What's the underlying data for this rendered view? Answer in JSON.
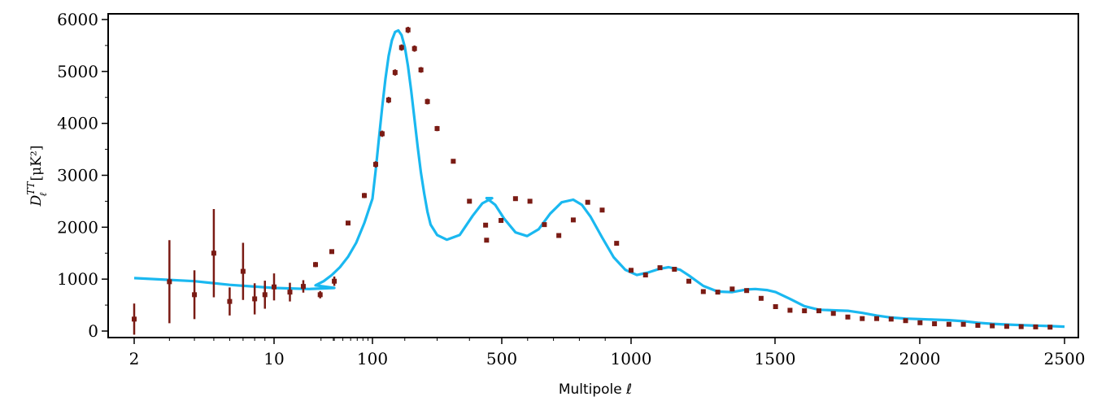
{
  "chart_data": {
    "type": "scatter",
    "xlabel": "Multipole ℓ",
    "ylabel": "D",
    "ylabel_sub": "ℓ",
    "ylabel_sup": "TT",
    "ylabel_unit": "[μK²]",
    "x_scale": "log for ℓ < 30, linear for ℓ ≥ 30",
    "x_ticks": [
      "2",
      "10",
      "100",
      "500",
      "1000",
      "1500",
      "2000",
      "2500"
    ],
    "y_ticks": [
      "0",
      "1000",
      "2000",
      "3000",
      "4000",
      "5000",
      "6000"
    ],
    "ylim": [
      -150,
      6100
    ],
    "grid": false,
    "colors": {
      "model": "#1ab8f0",
      "data": "#7a1b14"
    },
    "series": [
      {
        "kind": "model-curve",
        "x": [
          2,
          4,
          6,
          10,
          15,
          20,
          30,
          40,
          50,
          60,
          70,
          80,
          90,
          100,
          110,
          120,
          130,
          140,
          150,
          160,
          170,
          180,
          190,
          200,
          210,
          220,
          230,
          240,
          250,
          260,
          270,
          280,
          300,
          330,
          370,
          410,
          440,
          470,
          500,
          530,
          560,
          600,
          640,
          680,
          720,
          760,
          800,
          830,
          860,
          900,
          940,
          980,
          1020,
          1060,
          1100,
          1130,
          1170,
          1200,
          1250,
          1300,
          1350,
          1400,
          1430,
          1470,
          1500,
          1550,
          1600,
          1650,
          1700,
          1750,
          1800,
          1850,
          1900,
          1950,
          2000,
          2050,
          2100,
          2150,
          2200,
          2250,
          2300,
          2350,
          2400,
          2450,
          2500
        ],
        "y": [
          1020,
          960,
          890,
          830,
          810,
          830,
          880,
          960,
          1080,
          1230,
          1430,
          1700,
          2080,
          2550,
          3100,
          3700,
          4300,
          4850,
          5300,
          5600,
          5760,
          5790,
          5700,
          5470,
          5100,
          4620,
          4080,
          3550,
          3050,
          2650,
          2300,
          2050,
          1850,
          1760,
          1850,
          2220,
          2460,
          2560,
          2560,
          2430,
          2170,
          1900,
          1830,
          1960,
          2260,
          2480,
          2530,
          2430,
          2200,
          1800,
          1420,
          1180,
          1080,
          1130,
          1200,
          1230,
          1180,
          1070,
          870,
          760,
          750,
          800,
          810,
          790,
          750,
          620,
          480,
          410,
          400,
          390,
          350,
          300,
          260,
          240,
          230,
          220,
          210,
          190,
          160,
          140,
          125,
          115,
          105,
          95,
          85
        ]
      },
      {
        "kind": "data-points",
        "x": [
          2,
          3,
          4,
          5,
          6,
          7,
          8,
          9,
          10,
          12,
          14,
          17,
          20,
          30,
          50,
          70,
          90,
          110,
          130,
          150,
          170,
          190,
          210,
          230,
          250,
          270,
          300,
          350,
          400,
          450,
          500,
          550,
          600,
          650,
          700,
          750,
          800,
          850,
          900,
          950,
          1000,
          1050,
          1100,
          1150,
          1200,
          1250,
          1300,
          1350,
          1400,
          1450,
          1500,
          1550,
          1600,
          1650,
          1700,
          1750,
          1800,
          1850,
          1900,
          1950,
          2000,
          2050,
          2100,
          2150,
          2200,
          2250,
          2300,
          2350,
          2400,
          2450
        ],
        "y": [
          230,
          950,
          700,
          1500,
          570,
          1150,
          620,
          700,
          850,
          750,
          860,
          700,
          960,
          1280,
          1530,
          2080,
          2610,
          3210,
          3800,
          4450,
          4980,
          5460,
          5800,
          5440,
          5030,
          4420,
          3900,
          3270,
          2500,
          2040,
          1750,
          2130,
          2550,
          2500,
          2050,
          1840,
          2140,
          2480,
          2330,
          1690,
          1170,
          1080,
          1220,
          1190,
          960,
          760,
          750,
          810,
          780,
          630,
          470,
          400,
          390,
          390,
          340,
          270,
          240,
          240,
          230,
          200,
          160,
          140,
          130,
          130,
          110,
          100,
          90,
          85,
          80,
          75
        ],
        "err": [
          300,
          800,
          470,
          850,
          270,
          550,
          300,
          270,
          260,
          180,
          120,
          70,
          90,
          50,
          40,
          40,
          50,
          60,
          60,
          60,
          60,
          60,
          60,
          60,
          55,
          55,
          50,
          40,
          35,
          35,
          30,
          30,
          30,
          30,
          30,
          30,
          30,
          30,
          30,
          25,
          25,
          25,
          25,
          25,
          20,
          20,
          20,
          20,
          20,
          20,
          20,
          20,
          20,
          20,
          20,
          20,
          20,
          20,
          20,
          20,
          20,
          20,
          20,
          20,
          20,
          20,
          20,
          20,
          20,
          20
        ]
      }
    ]
  }
}
